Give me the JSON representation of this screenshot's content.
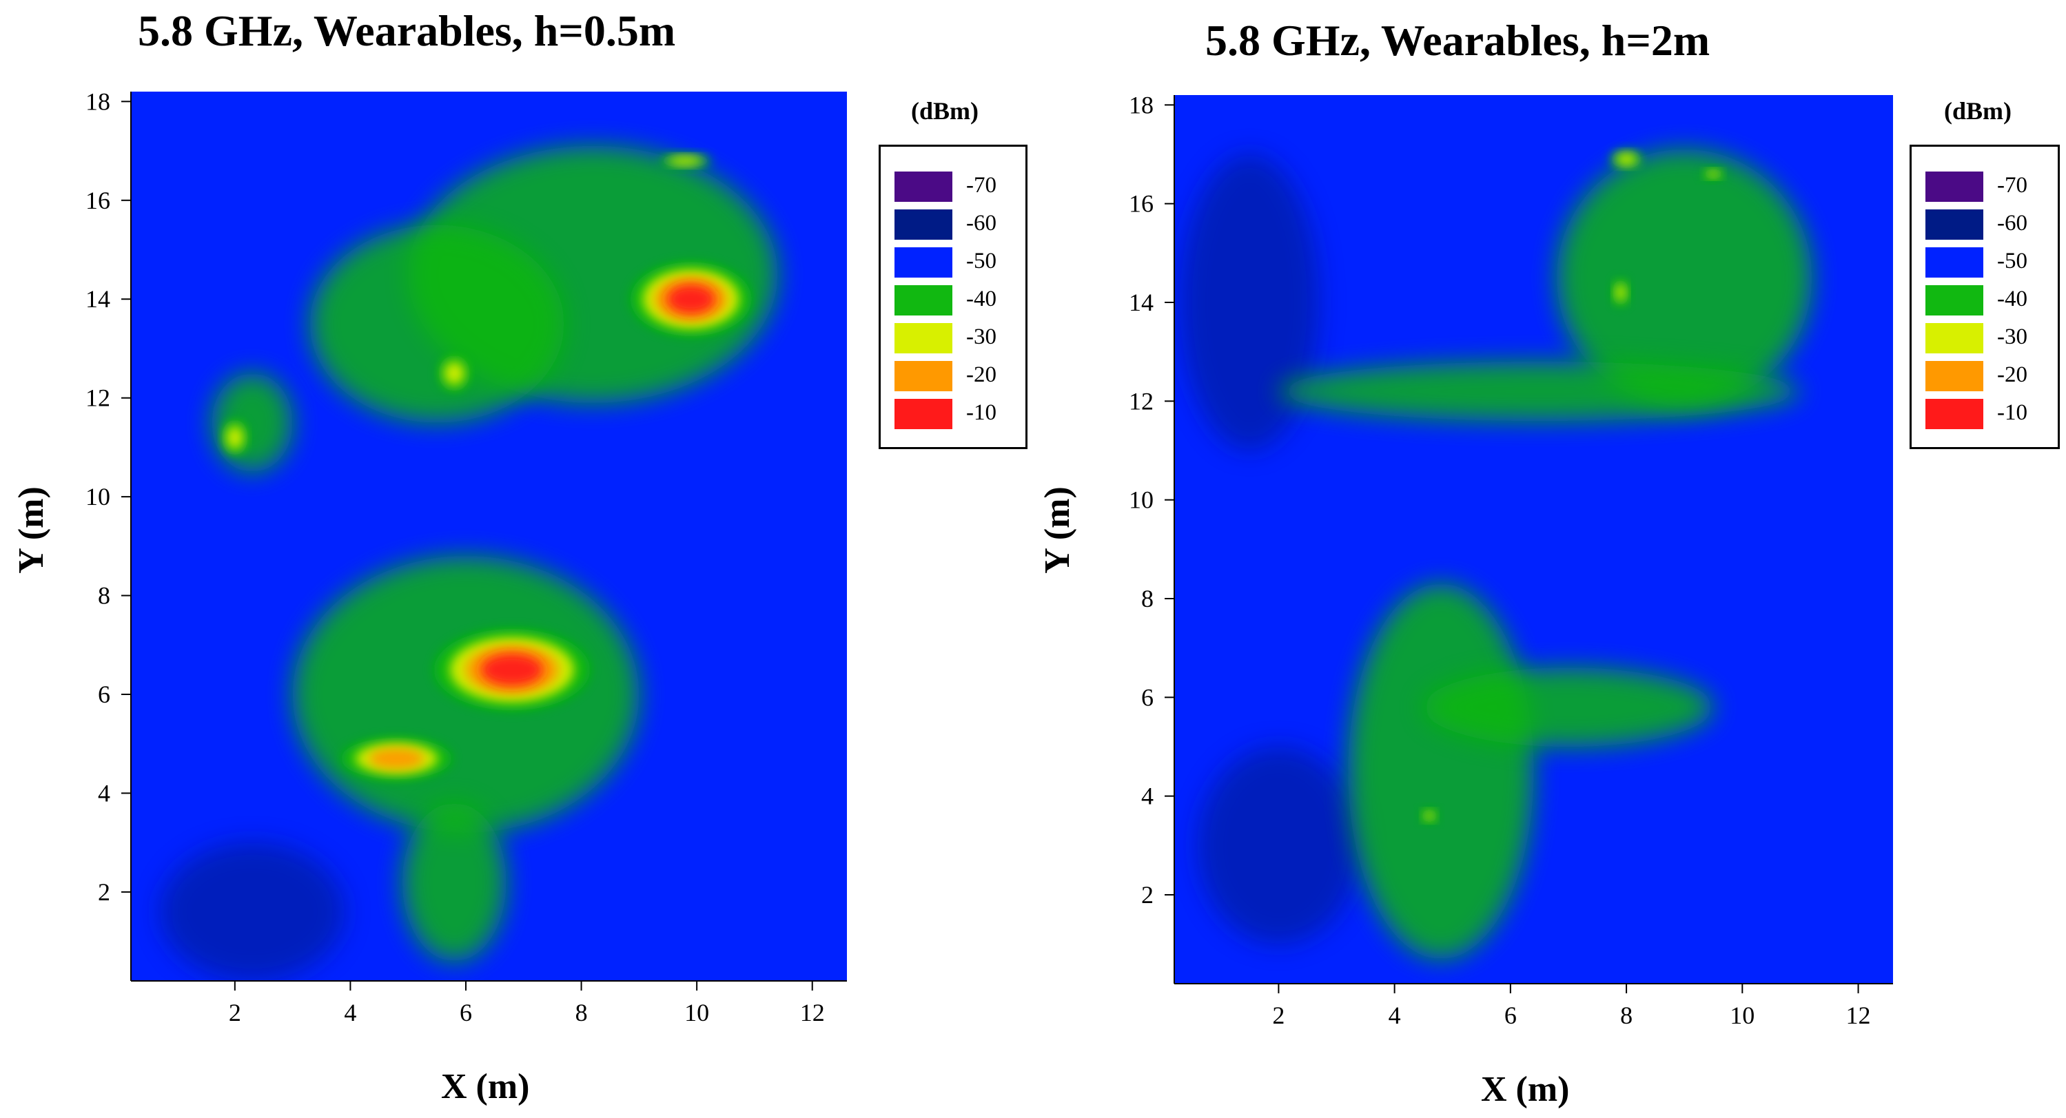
{
  "chart_data": [
    {
      "type": "heatmap",
      "title": "5.8 GHz, Wearables, h=0.5m",
      "xlabel": "X (m)",
      "ylabel": "Y (m)",
      "xlim": [
        0.2,
        12.6
      ],
      "ylim": [
        0.2,
        18.2
      ],
      "xticks": [
        2,
        4,
        6,
        8,
        10,
        12
      ],
      "yticks": [
        2,
        4,
        6,
        8,
        10,
        12,
        14,
        16,
        18
      ],
      "grid": false,
      "legend_title": "(dBm)",
      "legend_placement": "right",
      "levels": [
        {
          "label": "-70",
          "color": "#4b0a86"
        },
        {
          "label": "-60",
          "color": "#001b86"
        },
        {
          "label": "-50",
          "color": "#0022ff"
        },
        {
          "label": "-40",
          "color": "#11b811"
        },
        {
          "label": "-30",
          "color": "#d8f000"
        },
        {
          "label": "-20",
          "color": "#ff9900"
        },
        {
          "label": "-10",
          "color": "#ff1a1a"
        }
      ],
      "background_level": "-50",
      "hotspots": [
        {
          "x": 6.8,
          "y": 6.5,
          "peak": "-10",
          "sx": 0.9,
          "sy": 0.55
        },
        {
          "x": 4.8,
          "y": 4.7,
          "peak": "-20",
          "sx": 0.8,
          "sy": 0.35
        },
        {
          "x": 9.9,
          "y": 14.0,
          "peak": "-10",
          "sx": 0.7,
          "sy": 0.5
        },
        {
          "x": 5.8,
          "y": 12.5,
          "peak": "-30",
          "sx": 0.3,
          "sy": 0.4
        },
        {
          "x": 2.0,
          "y": 11.2,
          "peak": "-30",
          "sx": 0.25,
          "sy": 0.4
        },
        {
          "x": 9.8,
          "y": 16.8,
          "peak": "-30",
          "sx": 0.5,
          "sy": 0.15
        }
      ],
      "green_regions": [
        {
          "x": 6.0,
          "y": 6.0,
          "sx": 3.0,
          "sy": 2.8
        },
        {
          "x": 8.2,
          "y": 14.5,
          "sx": 3.2,
          "sy": 2.6
        },
        {
          "x": 5.5,
          "y": 13.5,
          "sx": 2.2,
          "sy": 2.0
        },
        {
          "x": 5.8,
          "y": 2.2,
          "sx": 0.9,
          "sy": 1.6
        },
        {
          "x": 2.3,
          "y": 11.5,
          "sx": 0.7,
          "sy": 1.0
        }
      ],
      "dark_regions": [
        {
          "x": 2.3,
          "y": 1.6,
          "sx": 1.6,
          "sy": 1.4
        }
      ]
    },
    {
      "type": "heatmap",
      "title": "5.8 GHz, Wearables, h=2m",
      "xlabel": "X (m)",
      "ylabel": "Y (m)",
      "xlim": [
        0.2,
        12.6
      ],
      "ylim": [
        0.2,
        18.2
      ],
      "xticks": [
        2,
        4,
        6,
        8,
        10,
        12
      ],
      "yticks": [
        2,
        4,
        6,
        8,
        10,
        12,
        14,
        16,
        18
      ],
      "grid": false,
      "legend_title": "(dBm)",
      "legend_placement": "right",
      "levels": [
        {
          "label": "-70",
          "color": "#4b0a86"
        },
        {
          "label": "-60",
          "color": "#001b86"
        },
        {
          "label": "-50",
          "color": "#0022ff"
        },
        {
          "label": "-40",
          "color": "#11b811"
        },
        {
          "label": "-30",
          "color": "#d8f000"
        },
        {
          "label": "-20",
          "color": "#ff9900"
        },
        {
          "label": "-10",
          "color": "#ff1a1a"
        }
      ],
      "background_level": "-50",
      "hotspots": [
        {
          "x": 8.0,
          "y": 16.9,
          "peak": "-30",
          "sx": 0.3,
          "sy": 0.2
        },
        {
          "x": 9.5,
          "y": 16.6,
          "peak": "-30",
          "sx": 0.2,
          "sy": 0.12
        },
        {
          "x": 7.9,
          "y": 14.2,
          "peak": "-30",
          "sx": 0.15,
          "sy": 0.3
        },
        {
          "x": 4.6,
          "y": 3.6,
          "peak": "-30",
          "sx": 0.15,
          "sy": 0.15
        }
      ],
      "green_regions": [
        {
          "x": 9.0,
          "y": 14.5,
          "sx": 2.2,
          "sy": 2.6
        },
        {
          "x": 4.8,
          "y": 4.5,
          "sx": 1.6,
          "sy": 3.8
        },
        {
          "x": 6.5,
          "y": 12.2,
          "sx": 4.5,
          "sy": 0.6
        },
        {
          "x": 7.0,
          "y": 5.8,
          "sx": 2.5,
          "sy": 0.8
        }
      ],
      "dark_regions": [
        {
          "x": 1.5,
          "y": 14.0,
          "sx": 1.2,
          "sy": 3.0
        },
        {
          "x": 2.0,
          "y": 3.0,
          "sx": 1.4,
          "sy": 2.0
        }
      ]
    }
  ]
}
